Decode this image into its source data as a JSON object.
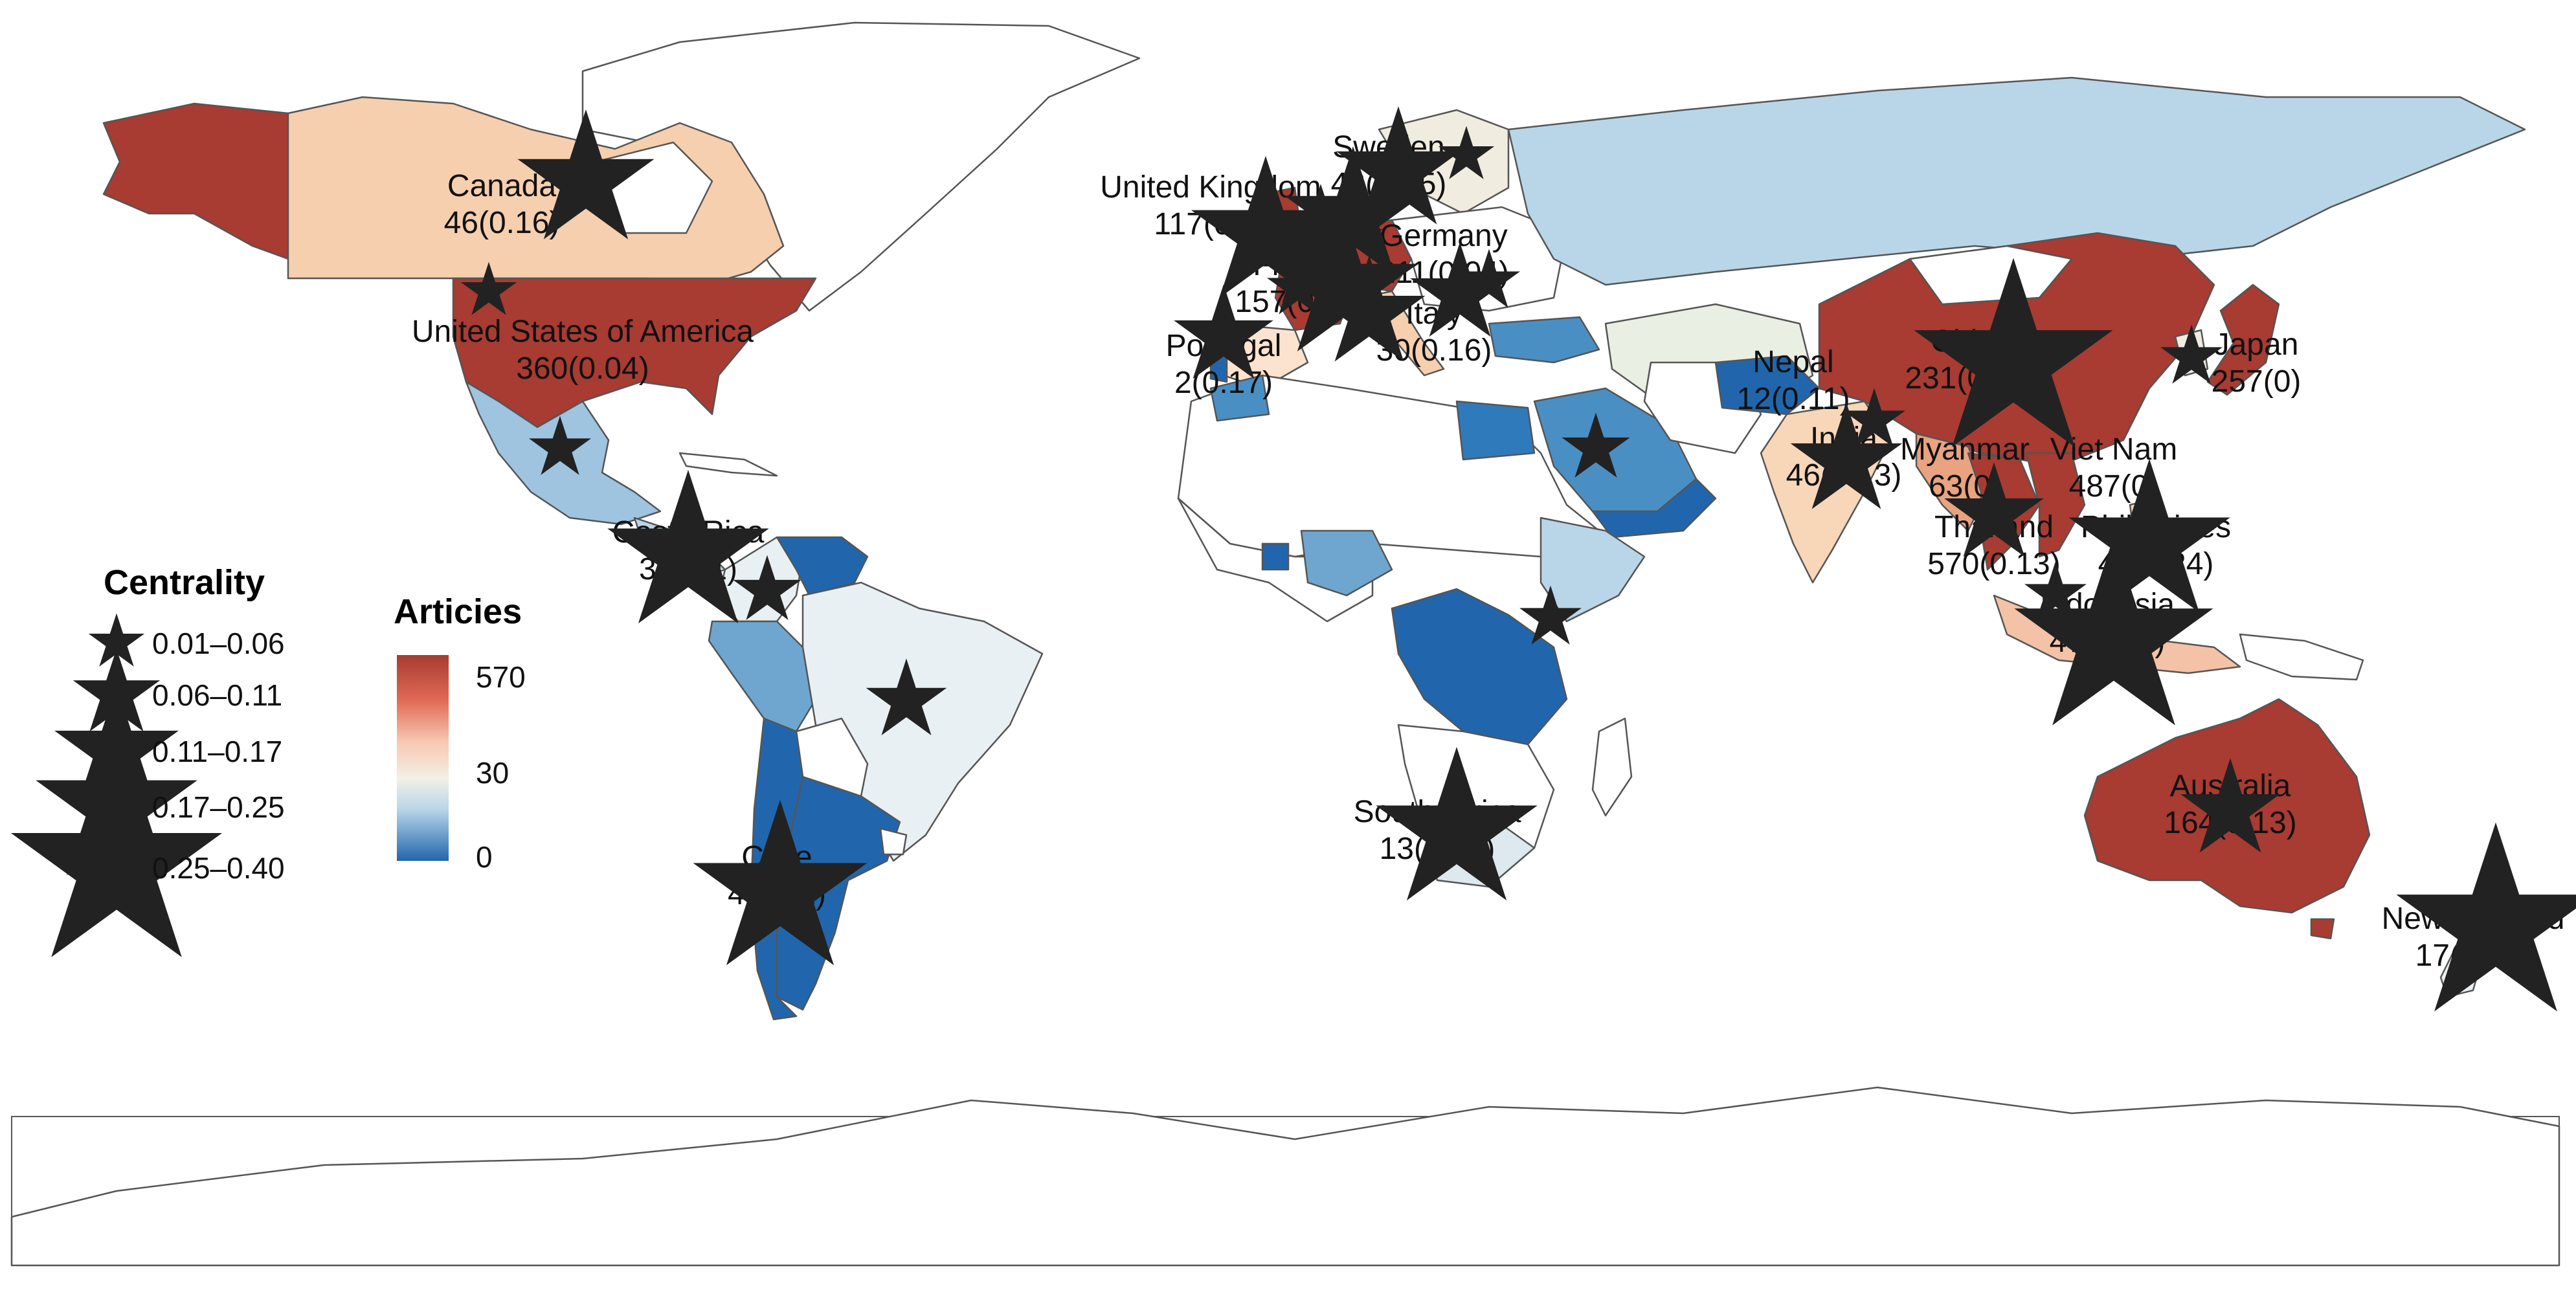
{
  "colors": {
    "scale_high": "#a83b32",
    "scale_upper": "#e9a380",
    "scale_mid": "#f3f0e6",
    "scale_lower": "#b9d6e8",
    "scale_low": "#2166ac",
    "no_data": "#ffffff",
    "star_fill": "#ffff1a",
    "border": "#555555"
  },
  "map": {
    "projection": "equirectangular world map, Antarctica shown",
    "country_labels": [
      {
        "name": "Canada",
        "value": "46(0.16)"
      },
      {
        "name": "United States of America",
        "value": "360(0.04)"
      },
      {
        "name": "Costa Rica",
        "value": "3(0.21)"
      },
      {
        "name": "Chile",
        "value": "4(0.22)"
      },
      {
        "name": "United Kingdom",
        "value": "117(0.2)"
      },
      {
        "name": "Sweden",
        "value": "43(0.15)"
      },
      {
        "name": "France",
        "value": "157(0.09)"
      },
      {
        "name": "Germany",
        "value": "211(0.04)"
      },
      {
        "name": "Italy",
        "value": "30(0.16)"
      },
      {
        "name": "Portugal",
        "value": "2(0.17)"
      },
      {
        "name": "South Africa",
        "value": "13(0.21)"
      },
      {
        "name": "Nepal",
        "value": "12(0.11)"
      },
      {
        "name": "India",
        "value": "46(0.13)"
      },
      {
        "name": "China",
        "value": "231(0.36)"
      },
      {
        "name": "Japan",
        "value": "257(0)"
      },
      {
        "name": "Myanmar",
        "value": "63(0)"
      },
      {
        "name": "Viet Nam",
        "value": "487(0)"
      },
      {
        "name": "Thailand",
        "value": "570(0.13)"
      },
      {
        "name": "Philippines",
        "value": "46(0.24)"
      },
      {
        "name": "Indonesia",
        "value": "47(0.37)"
      },
      {
        "name": "Australia",
        "value": "164(0.13)"
      },
      {
        "name": "New Zealand",
        "value": "17(0.32)"
      }
    ]
  },
  "legend_centrality": {
    "title": "Centrality",
    "items": [
      "0.01–0.06",
      "0.06–0.11",
      "0.11–0.17",
      "0.17–0.25",
      "0.25–0.40"
    ]
  },
  "legend_articles": {
    "title": "Articies",
    "ticks": [
      "570",
      "30",
      "0"
    ]
  }
}
